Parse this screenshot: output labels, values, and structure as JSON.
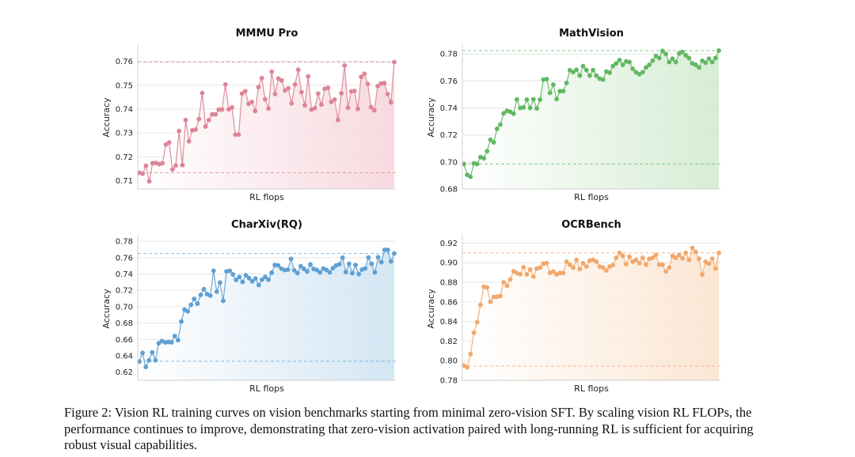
{
  "figure": {
    "caption": "Figure 2: Vision RL training curves on vision benchmarks starting from minimal zero-vision SFT. By scaling vision RL FLOPs, the performance continues to improve, demonstrating that zero-vision activation paired with long-running RL is sufficient for acquiring robust visual capabilities."
  },
  "chart_data": [
    {
      "type": "line",
      "title": "MMMU Pro",
      "xlabel": "RL flops",
      "ylabel": "Accuracy",
      "ylim": [
        0.7065,
        0.7665
      ],
      "yticks": [
        0.71,
        0.72,
        0.73,
        0.74,
        0.75,
        0.76
      ],
      "ytick_labels": [
        "0.71",
        "0.72",
        "0.73",
        "0.74",
        "0.75",
        "0.76"
      ],
      "xticks_shown": false,
      "grid": true,
      "baseline": 0.7133,
      "best": 0.7597,
      "colors": {
        "line": "#e08d9c",
        "marker": "#dd8597",
        "fill": "#f6d3da",
        "baseline": "#d98c9b"
      },
      "values": [
        0.7133,
        0.7129,
        0.7162,
        0.7097,
        0.7173,
        0.7174,
        0.7169,
        0.7173,
        0.7251,
        0.726,
        0.7147,
        0.7163,
        0.7308,
        0.7165,
        0.7354,
        0.7265,
        0.7311,
        0.7314,
        0.7358,
        0.7467,
        0.7327,
        0.7354,
        0.7378,
        0.7378,
        0.7398,
        0.7398,
        0.7503,
        0.7399,
        0.7407,
        0.7293,
        0.7293,
        0.7465,
        0.7475,
        0.7422,
        0.743,
        0.7392,
        0.7492,
        0.753,
        0.7441,
        0.7402,
        0.7557,
        0.7463,
        0.7528,
        0.752,
        0.7478,
        0.7487,
        0.7424,
        0.7503,
        0.7565,
        0.7471,
        0.7416,
        0.7537,
        0.7398,
        0.7404,
        0.7465,
        0.7419,
        0.7485,
        0.7489,
        0.743,
        0.744,
        0.7354,
        0.7466,
        0.7583,
        0.7406,
        0.7474,
        0.7476,
        0.7401,
        0.7535,
        0.7548,
        0.7505,
        0.7408,
        0.7395,
        0.7496,
        0.7507,
        0.7509,
        0.7463,
        0.7428,
        0.7597
      ]
    },
    {
      "type": "line",
      "title": "MathVision",
      "xlabel": "RL flops",
      "ylabel": "Accuracy",
      "ylim": [
        0.68,
        0.786
      ],
      "yticks": [
        0.68,
        0.7,
        0.72,
        0.74,
        0.76,
        0.78
      ],
      "ytick_labels": [
        "0.68",
        "0.70",
        "0.72",
        "0.74",
        "0.76",
        "0.78"
      ],
      "xticks_shown": false,
      "grid": true,
      "baseline": 0.6985,
      "best": 0.7825,
      "colors": {
        "line": "#6cbd6c",
        "marker": "#62b862",
        "fill": "#cfeacd",
        "baseline": "#6cbd6c"
      },
      "values": [
        0.6985,
        0.6905,
        0.689,
        0.699,
        0.6985,
        0.7036,
        0.7027,
        0.708,
        0.7165,
        0.7145,
        0.7245,
        0.7277,
        0.736,
        0.7379,
        0.7372,
        0.7357,
        0.7463,
        0.74,
        0.7404,
        0.7462,
        0.74,
        0.7464,
        0.7397,
        0.7462,
        0.761,
        0.7614,
        0.7512,
        0.7573,
        0.7466,
        0.7524,
        0.7525,
        0.7585,
        0.768,
        0.7665,
        0.7683,
        0.764,
        0.771,
        0.7681,
        0.764,
        0.768,
        0.764,
        0.7617,
        0.761,
        0.767,
        0.7661,
        0.771,
        0.773,
        0.7755,
        0.772,
        0.7745,
        0.774,
        0.769,
        0.7665,
        0.765,
        0.7665,
        0.77,
        0.772,
        0.775,
        0.7785,
        0.777,
        0.7822,
        0.78,
        0.774,
        0.7765,
        0.774,
        0.7803,
        0.7815,
        0.779,
        0.777,
        0.773,
        0.772,
        0.77,
        0.775,
        0.7735,
        0.7765,
        0.774,
        0.777,
        0.7825
      ]
    },
    {
      "type": "line",
      "title": "CharXiv(RQ)",
      "xlabel": "RL flops",
      "ylabel": "Accuracy",
      "ylim": [
        0.61,
        0.785
      ],
      "yticks": [
        0.62,
        0.64,
        0.66,
        0.68,
        0.7,
        0.72,
        0.74,
        0.76,
        0.78
      ],
      "ytick_labels": [
        "0.62",
        "0.64",
        "0.66",
        "0.68",
        "0.70",
        "0.72",
        "0.74",
        "0.76",
        "0.78"
      ],
      "xticks_shown": false,
      "grid": true,
      "baseline": 0.6333,
      "best": 0.765,
      "colors": {
        "line": "#6ba8d8",
        "marker": "#5fa0d4",
        "fill": "#cce2f2",
        "baseline": "#6ba8d8"
      },
      "values": [
        0.633,
        0.6435,
        0.6263,
        0.6345,
        0.6441,
        0.6345,
        0.6553,
        0.658,
        0.6563,
        0.6568,
        0.6565,
        0.6641,
        0.6591,
        0.6819,
        0.6965,
        0.6943,
        0.7023,
        0.7095,
        0.7037,
        0.7144,
        0.7214,
        0.7154,
        0.7136,
        0.7439,
        0.7184,
        0.7295,
        0.7072,
        0.7432,
        0.744,
        0.7395,
        0.7327,
        0.7365,
        0.7303,
        0.7385,
        0.735,
        0.731,
        0.7345,
        0.7265,
        0.733,
        0.7365,
        0.733,
        0.7415,
        0.751,
        0.7505,
        0.7466,
        0.7448,
        0.7452,
        0.7585,
        0.7445,
        0.741,
        0.7495,
        0.7464,
        0.7431,
        0.7517,
        0.7461,
        0.745,
        0.742,
        0.7467,
        0.745,
        0.742,
        0.7471,
        0.7505,
        0.752,
        0.76,
        0.7424,
        0.7525,
        0.741,
        0.751,
        0.74,
        0.7455,
        0.7468,
        0.7602,
        0.7525,
        0.742,
        0.7605,
        0.7545,
        0.7695,
        0.7695,
        0.7555,
        0.765
      ]
    },
    {
      "type": "line",
      "title": "OCRBench",
      "xlabel": "RL flops",
      "ylabel": "Accuracy",
      "ylim": [
        0.78,
        0.926
      ],
      "yticks": [
        0.78,
        0.8,
        0.82,
        0.84,
        0.86,
        0.88,
        0.9,
        0.92
      ],
      "ytick_labels": [
        "0.78",
        "0.80",
        "0.82",
        "0.84",
        "0.86",
        "0.88",
        "0.90",
        "0.92"
      ],
      "xticks_shown": false,
      "grid": true,
      "baseline": 0.7945,
      "best": 0.91,
      "colors": {
        "line": "#f3b27a",
        "marker": "#f2a86a",
        "fill": "#fbe2cc",
        "baseline": "#f0a77a"
      },
      "values": [
        0.795,
        0.7933,
        0.8068,
        0.8285,
        0.8393,
        0.857,
        0.8755,
        0.8747,
        0.86,
        0.865,
        0.8653,
        0.866,
        0.88,
        0.8764,
        0.883,
        0.8913,
        0.8894,
        0.8883,
        0.8954,
        0.888,
        0.893,
        0.8858,
        0.894,
        0.895,
        0.899,
        0.8997,
        0.8895,
        0.891,
        0.888,
        0.8895,
        0.8895,
        0.901,
        0.898,
        0.895,
        0.9028,
        0.8935,
        0.8995,
        0.896,
        0.902,
        0.903,
        0.901,
        0.896,
        0.895,
        0.892,
        0.896,
        0.8975,
        0.905,
        0.91,
        0.907,
        0.8985,
        0.906,
        0.901,
        0.903,
        0.8995,
        0.905,
        0.898,
        0.904,
        0.905,
        0.908,
        0.898,
        0.898,
        0.891,
        0.895,
        0.907,
        0.905,
        0.908,
        0.9045,
        0.91,
        0.903,
        0.915,
        0.911,
        0.904,
        0.888,
        0.901,
        0.899,
        0.904,
        0.894,
        0.91
      ]
    }
  ]
}
